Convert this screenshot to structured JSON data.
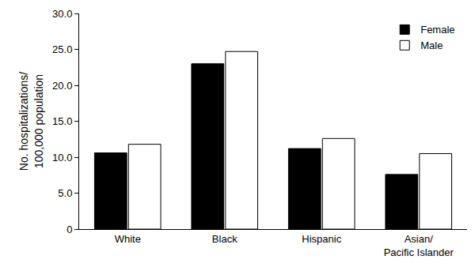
{
  "chart_data": {
    "type": "bar",
    "y_label": "No. hospitalizations/\n100,000 population",
    "categories": [
      "White",
      "Black",
      "Hispanic",
      "Asian/\nPacific Islander"
    ],
    "series": [
      {
        "name": "Female",
        "color": "#000000",
        "values": [
          10.6,
          23.0,
          11.2,
          7.6
        ]
      },
      {
        "name": "Male",
        "color": "#ffffff",
        "values": [
          11.8,
          24.7,
          12.6,
          10.5
        ]
      }
    ],
    "ylim": [
      0,
      30
    ],
    "yticks": [
      {
        "value": 0,
        "label": "0"
      },
      {
        "value": 5,
        "label": "5.0"
      },
      {
        "value": 10,
        "label": "10.0"
      },
      {
        "value": 15,
        "label": "15.0"
      },
      {
        "value": 20,
        "label": "20.0"
      },
      {
        "value": 25,
        "label": "25.0"
      },
      {
        "value": 30,
        "label": "30.0"
      }
    ],
    "grid": false,
    "legend": "top right"
  }
}
